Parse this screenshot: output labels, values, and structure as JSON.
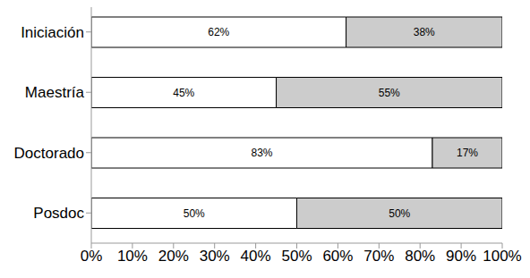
{
  "chart_data": {
    "type": "bar",
    "orientation": "horizontal",
    "stacked": true,
    "data_labels": true,
    "categories": [
      "Iniciación",
      "Maestría",
      "Doctorado",
      "Posdoc"
    ],
    "series": [
      {
        "color": "#ffffff",
        "values": [
          62,
          45,
          83,
          50
        ],
        "value_labels": [
          "62%",
          "45%",
          "83%",
          "50%"
        ]
      },
      {
        "color": "#cccccc",
        "values": [
          38,
          55,
          17,
          50
        ],
        "value_labels": [
          "38%",
          "55%",
          "17%",
          "50%"
        ]
      }
    ],
    "xlim": [
      0,
      100
    ],
    "xticks": [
      {
        "value": 0,
        "label": "0%"
      },
      {
        "value": 10,
        "label": "10%"
      },
      {
        "value": 20,
        "label": "20%"
      },
      {
        "value": 30,
        "label": "30%"
      },
      {
        "value": 40,
        "label": "40%"
      },
      {
        "value": 50,
        "label": "50%"
      },
      {
        "value": 60,
        "label": "60%"
      },
      {
        "value": 70,
        "label": "70%"
      },
      {
        "value": 80,
        "label": "80%"
      },
      {
        "value": 90,
        "label": "90%"
      },
      {
        "value": 100,
        "label": "100%"
      }
    ]
  }
}
